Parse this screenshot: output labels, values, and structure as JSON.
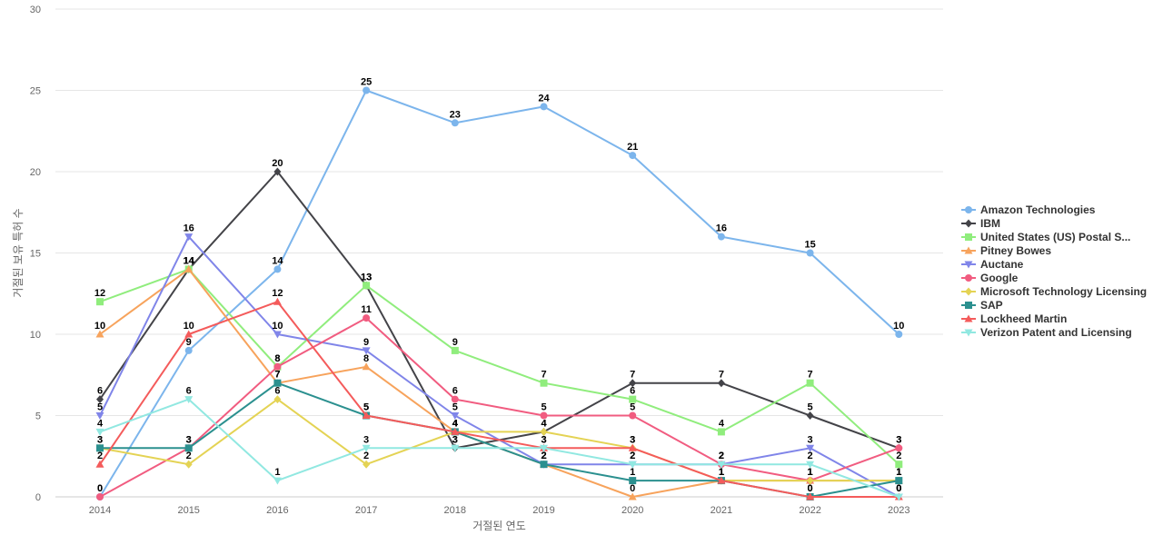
{
  "chart_data": {
    "type": "line",
    "xlabel": "거절된 연도",
    "ylabel": "거절된 보유 특허 수",
    "ylim": [
      0,
      30
    ],
    "yticks": [
      0,
      5,
      10,
      15,
      20,
      25,
      30
    ],
    "x": [
      "2014",
      "2015",
      "2016",
      "2017",
      "2018",
      "2019",
      "2020",
      "2021",
      "2022",
      "2023"
    ],
    "grid": true,
    "legend_position": "right",
    "series": [
      {
        "name": "Amazon Technologies",
        "legend_label": "Amazon Technologies",
        "color": "#7cb5ec",
        "marker": "circle",
        "values": [
          0,
          9,
          14,
          25,
          23,
          24,
          21,
          16,
          15,
          10
        ]
      },
      {
        "name": "IBM",
        "legend_label": "IBM",
        "color": "#434348",
        "marker": "diamond",
        "values": [
          6,
          14,
          20,
          13,
          3,
          4,
          7,
          7,
          5,
          3
        ]
      },
      {
        "name": "United States (US) Postal Service",
        "legend_label": "United States (US) Postal S...",
        "color": "#90ed7d",
        "marker": "square",
        "values": [
          12,
          14,
          8,
          13,
          9,
          7,
          6,
          4,
          7,
          2
        ]
      },
      {
        "name": "Pitney Bowes",
        "legend_label": "Pitney Bowes",
        "color": "#f7a35c",
        "marker": "triangle",
        "values": [
          10,
          14,
          7,
          8,
          4,
          2,
          0,
          1,
          1,
          1
        ]
      },
      {
        "name": "Auctane",
        "legend_label": "Auctane",
        "color": "#8085e9",
        "marker": "triangle-down",
        "values": [
          5,
          16,
          10,
          9,
          5,
          2,
          2,
          2,
          3,
          0
        ]
      },
      {
        "name": "Google",
        "legend_label": "Google",
        "color": "#f15c80",
        "marker": "circle",
        "values": [
          0,
          3,
          8,
          11,
          6,
          5,
          5,
          2,
          1,
          3
        ]
      },
      {
        "name": "Microsoft Technology Licensing",
        "legend_label": "Microsoft Technology Licensing",
        "color": "#e4d354",
        "marker": "diamond",
        "values": [
          3,
          2,
          6,
          2,
          4,
          4,
          3,
          1,
          1,
          1
        ]
      },
      {
        "name": "SAP",
        "legend_label": "SAP",
        "color": "#2b908f",
        "marker": "square",
        "values": [
          3,
          3,
          7,
          5,
          4,
          2,
          1,
          1,
          0,
          1
        ]
      },
      {
        "name": "Lockheed Martin",
        "legend_label": "Lockheed Martin",
        "color": "#f45b5b",
        "marker": "triangle",
        "values": [
          2,
          10,
          12,
          5,
          4,
          3,
          3,
          1,
          0,
          0
        ]
      },
      {
        "name": "Verizon Patent and Licensing",
        "legend_label": "Verizon Patent and Licensing",
        "color": "#91e8e1",
        "marker": "triangle-down",
        "values": [
          4,
          6,
          1,
          3,
          3,
          3,
          2,
          2,
          2,
          0
        ]
      }
    ]
  }
}
